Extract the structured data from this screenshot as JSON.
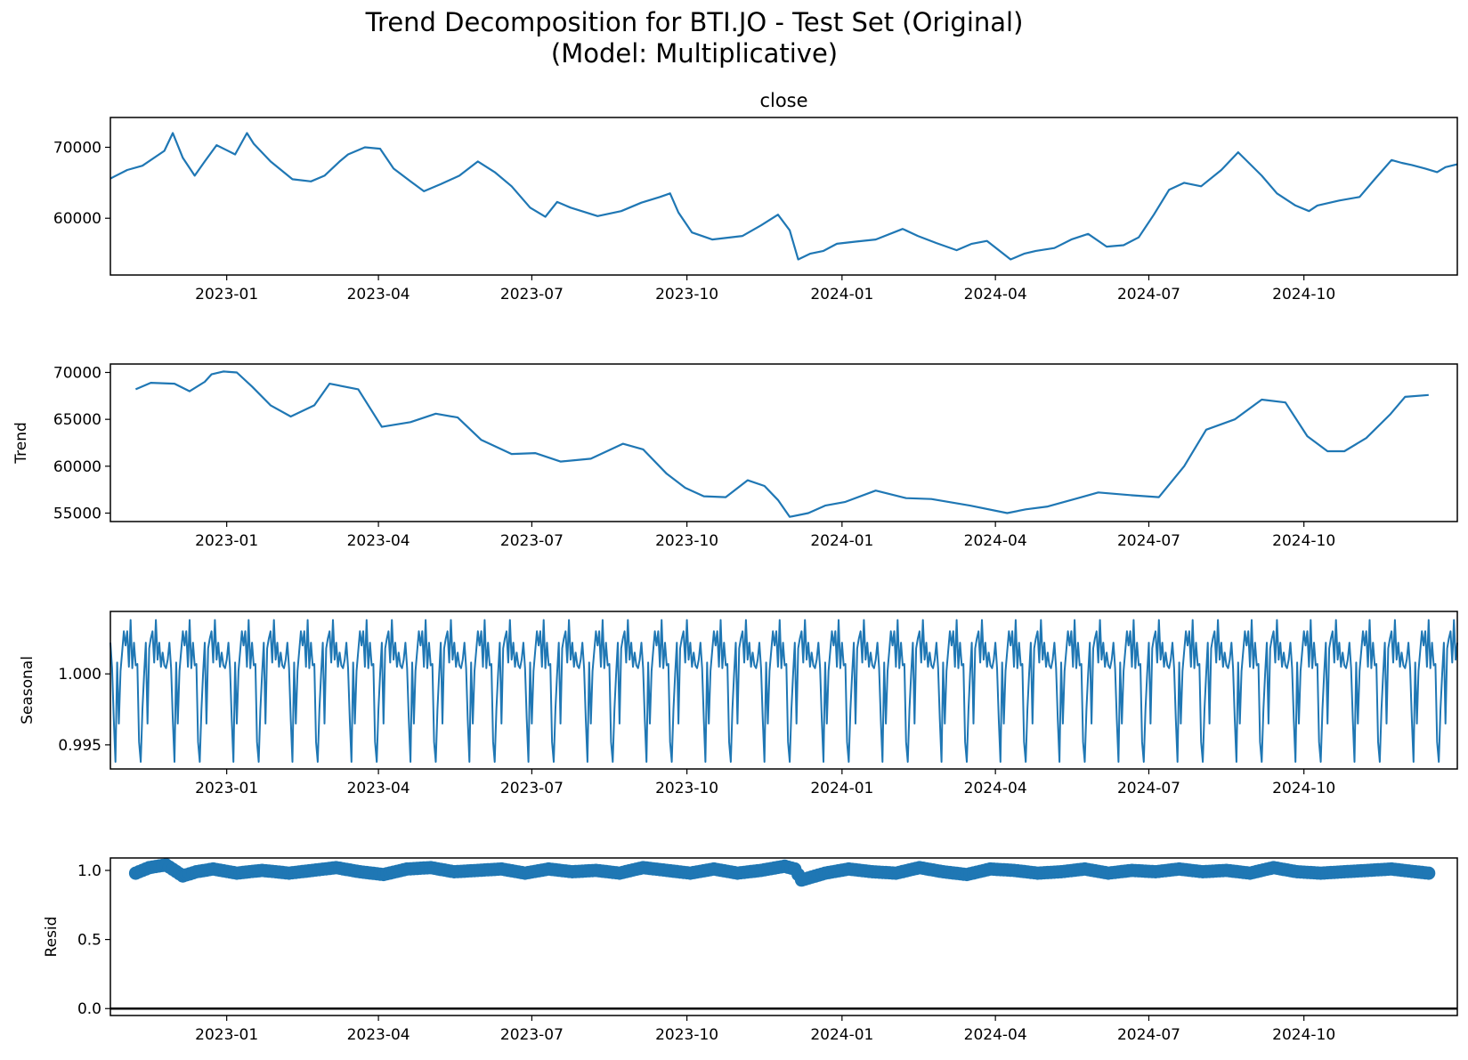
{
  "figure": {
    "title_line1": "Trend Decomposition for BTI.JO - Test Set (Original)",
    "title_line2": "(Model: Multiplicative)",
    "line_color": "#1f77b4",
    "zero_line_color": "#000000"
  },
  "chart_data": [
    {
      "type": "line",
      "title": "close",
      "ylabel": "",
      "x_start": "2022-10-24",
      "x_end": "2024-12-31",
      "x_ticks": [
        "2023-01",
        "2023-04",
        "2023-07",
        "2023-10",
        "2024-01",
        "2024-04",
        "2024-07",
        "2024-10"
      ],
      "y_ticks": [
        "60000",
        "70000"
      ],
      "ylim": [
        52000,
        74200
      ],
      "series": [
        {
          "x": [
            "2022-10-24",
            "2022-11-03",
            "2022-11-12",
            "2022-11-25",
            "2022-11-30",
            "2022-12-06",
            "2022-12-13",
            "2022-12-19",
            "2022-12-26",
            "2023-01-06",
            "2023-01-13",
            "2023-01-17",
            "2023-01-27",
            "2023-02-09",
            "2023-02-20",
            "2023-02-28",
            "2023-03-09",
            "2023-03-14",
            "2023-03-24",
            "2023-04-02",
            "2023-04-10",
            "2023-04-20",
            "2023-04-28",
            "2023-05-08",
            "2023-05-19",
            "2023-05-30",
            "2023-06-09",
            "2023-06-19",
            "2023-06-30",
            "2023-07-09",
            "2023-07-16",
            "2023-07-24",
            "2023-08-09",
            "2023-08-23",
            "2023-09-04",
            "2023-09-15",
            "2023-09-21",
            "2023-09-26",
            "2023-10-04",
            "2023-10-16",
            "2023-11-03",
            "2023-11-14",
            "2023-11-24",
            "2023-12-01",
            "2023-12-06",
            "2023-12-13",
            "2023-12-21",
            "2023-12-29",
            "2024-01-09",
            "2024-01-21",
            "2024-02-06",
            "2024-02-15",
            "2024-02-26",
            "2024-03-09",
            "2024-03-18",
            "2024-03-27",
            "2024-04-10",
            "2024-04-18",
            "2024-04-25",
            "2024-05-06",
            "2024-05-16",
            "2024-05-26",
            "2024-06-06",
            "2024-06-16",
            "2024-06-25",
            "2024-07-04",
            "2024-07-13",
            "2024-07-22",
            "2024-08-01",
            "2024-08-13",
            "2024-08-23",
            "2024-09-06",
            "2024-09-15",
            "2024-09-26",
            "2024-10-04",
            "2024-10-09",
            "2024-10-22",
            "2024-11-03",
            "2024-11-12",
            "2024-11-22",
            "2024-11-28",
            "2024-12-04",
            "2024-12-12",
            "2024-12-19",
            "2024-12-24",
            "2024-12-31"
          ],
          "y": [
            65600,
            66800,
            67400,
            69500,
            72000,
            68500,
            66000,
            68000,
            70300,
            69000,
            72000,
            70500,
            68000,
            65500,
            65200,
            66000,
            68000,
            69000,
            70000,
            69800,
            67000,
            65200,
            63800,
            64800,
            66000,
            68000,
            66500,
            64500,
            61500,
            60200,
            62300,
            61500,
            60300,
            61000,
            62200,
            63000,
            63500,
            60800,
            58000,
            57000,
            57500,
            59000,
            60500,
            58300,
            54200,
            55000,
            55400,
            56400,
            56700,
            57000,
            58500,
            57500,
            56500,
            55500,
            56400,
            56800,
            54200,
            55000,
            55400,
            55800,
            57000,
            57800,
            56000,
            56200,
            57300,
            60500,
            64000,
            65000,
            64500,
            66800,
            69300,
            66000,
            63500,
            61800,
            61000,
            61800,
            62500,
            63000,
            65500,
            68200,
            67800,
            67500,
            67000,
            66500,
            67200,
            67600
          ]
        }
      ]
    },
    {
      "type": "line",
      "title": "",
      "ylabel": "Trend",
      "x_ticks": [
        "2023-01",
        "2023-04",
        "2023-07",
        "2023-10",
        "2024-01",
        "2024-04",
        "2024-07",
        "2024-10"
      ],
      "y_ticks": [
        "55000",
        "60000",
        "65000",
        "70000"
      ],
      "ylim": [
        54100,
        70900
      ],
      "series": [
        {
          "x": [
            "2022-11-08",
            "2022-11-17",
            "2022-12-01",
            "2022-12-10",
            "2022-12-19",
            "2022-12-23",
            "2022-12-30",
            "2023-01-07",
            "2023-01-16",
            "2023-01-27",
            "2023-02-08",
            "2023-02-22",
            "2023-03-03",
            "2023-03-20",
            "2023-04-03",
            "2023-04-20",
            "2023-05-05",
            "2023-05-18",
            "2023-06-01",
            "2023-06-19",
            "2023-07-03",
            "2023-07-18",
            "2023-08-05",
            "2023-08-24",
            "2023-09-05",
            "2023-09-19",
            "2023-09-30",
            "2023-10-11",
            "2023-10-24",
            "2023-11-06",
            "2023-11-16",
            "2023-11-24",
            "2023-12-01",
            "2023-12-12",
            "2023-12-22",
            "2024-01-03",
            "2024-01-21",
            "2024-02-08",
            "2024-02-23",
            "2024-03-17",
            "2024-04-08",
            "2024-04-19",
            "2024-05-02",
            "2024-05-20",
            "2024-06-01",
            "2024-06-21",
            "2024-07-07",
            "2024-07-22",
            "2024-08-04",
            "2024-08-21",
            "2024-09-06",
            "2024-09-20",
            "2024-10-03",
            "2024-10-15",
            "2024-10-25",
            "2024-11-07",
            "2024-11-21",
            "2024-11-30",
            "2024-12-14"
          ],
          "y": [
            68200,
            68900,
            68800,
            68000,
            69000,
            69800,
            70100,
            70000,
            68500,
            66500,
            65300,
            66500,
            68800,
            68200,
            64200,
            64700,
            65600,
            65200,
            62800,
            61300,
            61400,
            60500,
            60800,
            62400,
            61800,
            59200,
            57700,
            56800,
            56700,
            58500,
            57900,
            56400,
            54600,
            55000,
            55800,
            56200,
            57400,
            56600,
            56500,
            55800,
            55000,
            55400,
            55700,
            56600,
            57200,
            56900,
            56700,
            60000,
            63900,
            65000,
            67100,
            66800,
            63200,
            61600,
            61600,
            63000,
            65500,
            67400,
            67600
          ]
        }
      ]
    },
    {
      "type": "line",
      "title": "",
      "ylabel": "Seasonal",
      "x_ticks": [
        "2023-01",
        "2023-04",
        "2023-07",
        "2023-10",
        "2024-01",
        "2024-04",
        "2024-07",
        "2024-10"
      ],
      "y_ticks": [
        "0.995",
        "1.000"
      ],
      "ylim": [
        0.9933,
        1.0044
      ],
      "period_days": 35,
      "pattern": [
        1.0022,
        1.0004,
        0.9968,
        0.9938,
        1.0008,
        0.9965,
        1.0002,
        1.0016,
        1.003,
        1.002,
        1.003,
        1.0005,
        1.0038,
        1.0004,
        1.0022,
        1.0006,
        1.0007,
        0.9952,
        0.9938,
        0.9975,
        1.0,
        1.0022,
        0.9965,
        1.0018,
        1.0025,
        1.003,
        1.0008,
        1.0038,
        1.001,
        1.0022,
        1.0005,
        1.0015,
        1.0006,
        1.0004,
        1.001
      ]
    },
    {
      "type": "scatter",
      "title": "",
      "ylabel": "Resid",
      "x_ticks": [
        "2023-01",
        "2023-04",
        "2023-07",
        "2023-10",
        "2024-01",
        "2024-04",
        "2024-07",
        "2024-10"
      ],
      "y_ticks": [
        "0.0",
        "0.5",
        "1.0"
      ],
      "ylim": [
        -0.05,
        1.09
      ],
      "zero_line": 0.0,
      "series": [
        {
          "x": [
            "2022-11-08",
            "2022-11-16",
            "2022-11-26",
            "2022-12-06",
            "2022-12-14",
            "2022-12-24",
            "2023-01-07",
            "2023-01-22",
            "2023-02-07",
            "2023-02-21",
            "2023-03-07",
            "2023-03-21",
            "2023-04-04",
            "2023-04-18",
            "2023-05-02",
            "2023-05-16",
            "2023-05-30",
            "2023-06-13",
            "2023-06-27",
            "2023-07-11",
            "2023-07-25",
            "2023-08-08",
            "2023-08-22",
            "2023-09-05",
            "2023-09-19",
            "2023-10-03",
            "2023-10-17",
            "2023-10-31",
            "2023-11-14",
            "2023-11-28",
            "2023-12-04",
            "2023-12-08",
            "2023-12-22",
            "2024-01-05",
            "2024-01-19",
            "2024-02-02",
            "2024-02-16",
            "2024-03-01",
            "2024-03-15",
            "2024-03-29",
            "2024-04-12",
            "2024-04-26",
            "2024-05-10",
            "2024-05-24",
            "2024-06-07",
            "2024-06-21",
            "2024-07-05",
            "2024-07-19",
            "2024-08-02",
            "2024-08-16",
            "2024-08-30",
            "2024-09-13",
            "2024-09-27",
            "2024-10-11",
            "2024-10-25",
            "2024-11-08",
            "2024-11-22",
            "2024-12-06",
            "2024-12-14"
          ],
          "y": [
            0.98,
            1.02,
            1.04,
            0.96,
            0.99,
            1.01,
            0.98,
            1.0,
            0.98,
            1.0,
            1.02,
            0.99,
            0.97,
            1.01,
            1.02,
            0.99,
            1.0,
            1.01,
            0.98,
            1.01,
            0.99,
            1.0,
            0.98,
            1.02,
            1.0,
            0.98,
            1.01,
            0.98,
            1.0,
            1.03,
            1.01,
            0.93,
            0.98,
            1.01,
            0.99,
            0.98,
            1.02,
            0.99,
            0.97,
            1.01,
            1.0,
            0.98,
            0.99,
            1.01,
            0.98,
            1.0,
            0.99,
            1.01,
            0.99,
            1.0,
            0.98,
            1.02,
            0.99,
            0.98,
            0.99,
            1.0,
            1.01,
            0.99,
            0.98
          ]
        }
      ]
    }
  ]
}
